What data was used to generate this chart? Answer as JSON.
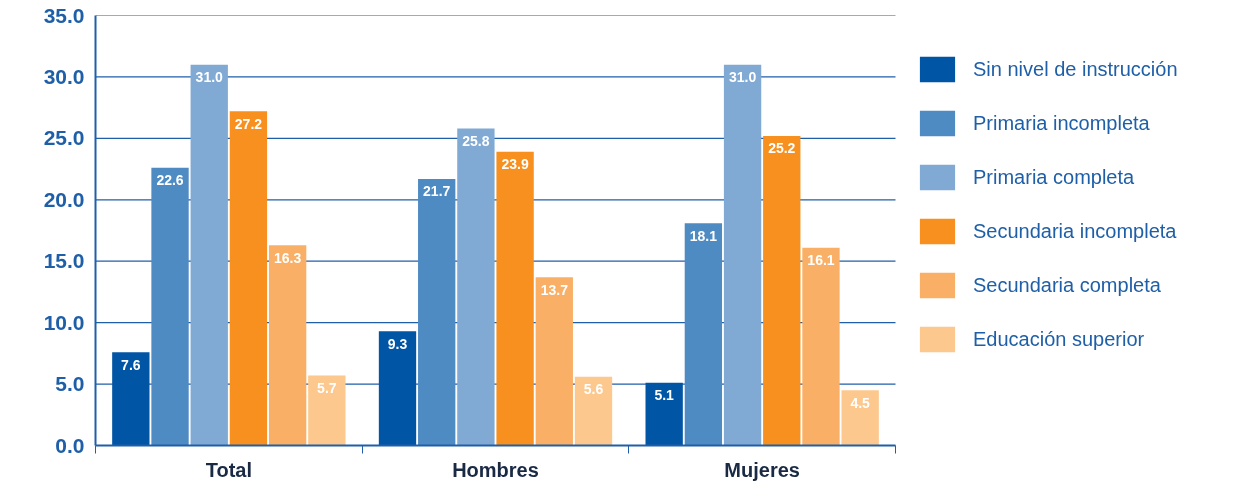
{
  "chart_data": {
    "type": "bar",
    "categories": [
      "Total",
      "Hombres",
      "Mujeres"
    ],
    "series": [
      {
        "name": "Sin nivel de instrucción",
        "color": "#0055a5",
        "values": [
          7.6,
          9.3,
          5.1
        ],
        "value_labels": [
          "7.6",
          "9.3",
          "5.1"
        ]
      },
      {
        "name": "Primaria incompleta",
        "color": "#4f8bc3",
        "values": [
          22.6,
          21.7,
          18.1
        ],
        "value_labels": [
          "22.6",
          "21.7",
          "18.1"
        ]
      },
      {
        "name": "Primaria completa",
        "color": "#80aad4",
        "values": [
          31.0,
          25.8,
          31.0
        ],
        "value_labels": [
          "31.0",
          "25.8",
          "31.0"
        ]
      },
      {
        "name": "Secundaria incompleta",
        "color": "#f7901e",
        "values": [
          27.2,
          23.9,
          25.2
        ],
        "value_labels": [
          "27.2",
          "23.9",
          "25.2"
        ]
      },
      {
        "name": "Secundaria completa",
        "color": "#f9b066",
        "values": [
          16.3,
          13.7,
          16.1
        ],
        "value_labels": [
          "16.3",
          "13.7",
          "16.1"
        ]
      },
      {
        "name": "Educación superior",
        "color": "#fcc88e",
        "values": [
          5.7,
          5.6,
          4.5
        ],
        "value_labels": [
          "5.7",
          "5.6",
          "4.5"
        ]
      }
    ],
    "ylim": [
      0,
      35
    ],
    "yticks": [
      {
        "value": 0,
        "label": "0.0"
      },
      {
        "value": 5,
        "label": "5.0"
      },
      {
        "value": 10,
        "label": "10.0"
      },
      {
        "value": 15,
        "label": "15.0"
      },
      {
        "value": 20,
        "label": "20.0"
      },
      {
        "value": 25,
        "label": "25.0"
      },
      {
        "value": 30,
        "label": "30.0"
      },
      {
        "value": 35,
        "label": "35.0"
      }
    ],
    "grid": "y",
    "legend": "right"
  }
}
